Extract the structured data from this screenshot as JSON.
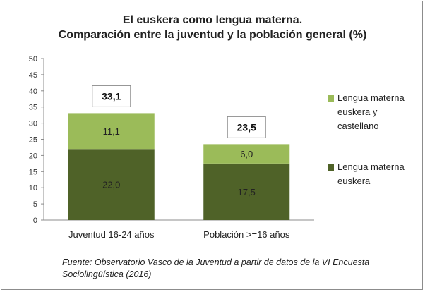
{
  "title_line1": "El euskera como lengua materna.",
  "title_line2": "Comparación entre la juventud y la población general (%)",
  "source_line1": "Fuente: Observatorio Vasco de la Juventud a partir de datos de la VI Encuesta",
  "source_line2": "Sociolingüística (2016)",
  "colors": {
    "euskera": "#4f6228",
    "euskera_castellano": "#9bbb59"
  },
  "chart_data": {
    "type": "bar",
    "stacked": true,
    "categories": [
      "Juventud 16-24 años",
      "Población >=16 años"
    ],
    "series": [
      {
        "name": "Lengua materna euskera",
        "values": [
          22.0,
          17.5
        ],
        "labels": [
          "22,0",
          "17,5"
        ]
      },
      {
        "name": "Lengua materna euskera y castellano",
        "values": [
          11.1,
          6.0
        ],
        "labels": [
          "11,1",
          "6,0"
        ]
      }
    ],
    "totals": [
      "33,1",
      "23,5"
    ],
    "ylim": [
      0,
      50
    ],
    "yticks": [
      "0",
      "5",
      "10",
      "15",
      "20",
      "25",
      "30",
      "35",
      "40",
      "45",
      "50"
    ],
    "legend": [
      {
        "lines": [
          "Lengua materna",
          "euskera y",
          "castellano"
        ]
      },
      {
        "lines": [
          "Lengua materna",
          "euskera"
        ]
      }
    ],
    "legend_position": "right",
    "grid": false
  }
}
